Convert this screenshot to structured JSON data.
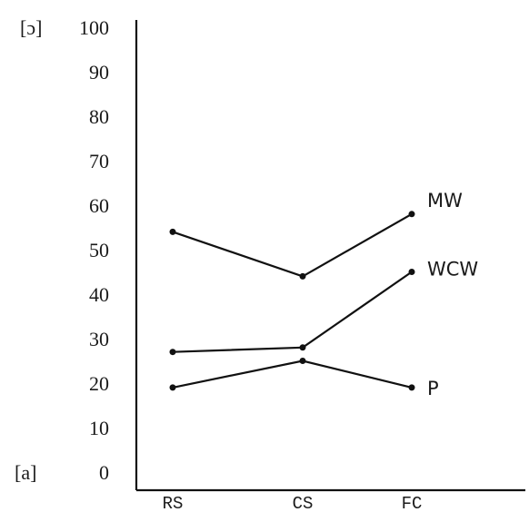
{
  "chart_data": {
    "type": "line",
    "categories": [
      "RS",
      "CS",
      "FC"
    ],
    "ylim": [
      0,
      100
    ],
    "yticks": [
      0,
      10,
      20,
      30,
      40,
      50,
      60,
      70,
      80,
      90,
      100
    ],
    "grid": false,
    "legend": "end-of-line labels",
    "corner_labels": {
      "top": "[ɔ]",
      "bottom": "[a]"
    },
    "series": [
      {
        "name": "MW",
        "values": [
          54,
          44,
          58
        ]
      },
      {
        "name": "WCW",
        "values": [
          27,
          28,
          45
        ]
      },
      {
        "name": "P",
        "values": [
          19,
          25,
          19
        ]
      }
    ]
  }
}
